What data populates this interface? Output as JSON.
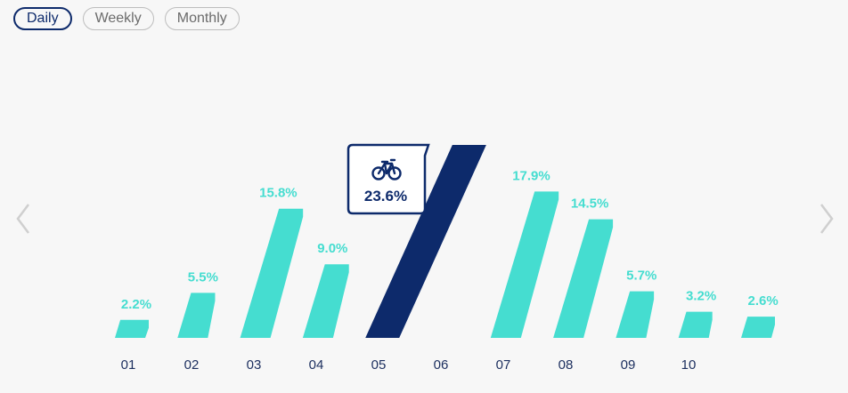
{
  "tabs": [
    {
      "label": "Daily",
      "active": true
    },
    {
      "label": "Weekly",
      "active": false
    },
    {
      "label": "Monthly",
      "active": false
    }
  ],
  "icons": {
    "prev": "chevron-left-icon",
    "next": "chevron-right-icon",
    "tooltip": "bicycle-icon"
  },
  "colors": {
    "bar": "#45ddd0",
    "highlight": "#0d2a6b",
    "label": "#45ddd0",
    "tick": "#1b2e5e"
  },
  "chart_data": {
    "type": "bar",
    "categories": [
      "01",
      "02",
      "03",
      "04",
      "05",
      "06",
      "07",
      "08",
      "09",
      "10"
    ],
    "values": [
      2.2,
      5.5,
      15.8,
      9.0,
      23.6,
      null,
      17.9,
      14.5,
      5.7,
      3.2,
      2.6
    ],
    "labels": [
      "2.2%",
      "5.5%",
      "15.8%",
      "9.0%",
      "23.6%",
      "",
      "17.9%",
      "14.5%",
      "5.7%",
      "3.2%",
      "2.6%"
    ],
    "highlighted_index": 4,
    "tooltip": {
      "value": "23.6%"
    },
    "ylim": [
      0,
      23.6
    ],
    "grid": false,
    "legend": "none"
  }
}
